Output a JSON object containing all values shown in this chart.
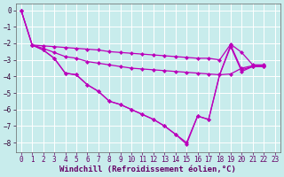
{
  "background_color": "#c8ecec",
  "line_color": "#bb00bb",
  "grid_color": "#ffffff",
  "xlabel": "Windchill (Refroidissement éolien,°C)",
  "xlim": [
    -0.5,
    23.5
  ],
  "ylim": [
    -8.6,
    0.4
  ],
  "yticks": [
    0,
    -1,
    -2,
    -3,
    -4,
    -5,
    -6,
    -7,
    -8
  ],
  "xticks": [
    0,
    1,
    2,
    3,
    4,
    5,
    6,
    7,
    8,
    9,
    10,
    11,
    12,
    13,
    14,
    15,
    16,
    17,
    18,
    19,
    20,
    21,
    22,
    23
  ],
  "curve1_x": [
    0,
    1,
    2,
    3,
    4,
    5,
    6,
    7,
    8,
    9,
    10,
    11,
    12,
    13,
    14,
    15,
    16,
    17,
    18,
    19,
    20,
    21,
    22
  ],
  "curve1_y": [
    0,
    -2.1,
    -2.15,
    -2.2,
    -2.25,
    -2.3,
    -2.35,
    -2.4,
    -2.5,
    -2.55,
    -2.6,
    -2.65,
    -2.7,
    -2.75,
    -2.8,
    -2.85,
    -2.9,
    -2.9,
    -3.0,
    -2.05,
    -2.55,
    -3.3,
    -3.3
  ],
  "curve2_x": [
    0,
    1,
    2,
    3,
    4,
    5,
    6,
    7,
    8,
    9,
    10,
    11,
    12,
    13,
    14,
    15,
    16,
    17,
    18,
    19,
    20,
    21,
    22
  ],
  "curve2_y": [
    0,
    -2.1,
    -2.3,
    -2.55,
    -2.8,
    -2.9,
    -3.1,
    -3.2,
    -3.3,
    -3.4,
    -3.5,
    -3.55,
    -3.6,
    -3.65,
    -3.7,
    -3.75,
    -3.8,
    -3.85,
    -3.9,
    -3.85,
    -3.5,
    -3.35,
    -3.35
  ],
  "curve3_x": [
    0,
    1,
    2,
    3,
    4,
    5,
    6,
    7,
    8,
    9,
    10,
    11,
    12,
    13,
    14,
    15,
    16,
    17,
    18,
    19,
    20,
    21,
    22
  ],
  "curve3_y": [
    0,
    -2.1,
    -2.4,
    -2.9,
    -3.8,
    -3.9,
    -4.5,
    -4.9,
    -5.5,
    -5.7,
    -6.0,
    -6.3,
    -6.6,
    -7.0,
    -7.5,
    -8.0,
    -6.4,
    -6.6,
    -3.9,
    -2.1,
    -3.6,
    -3.4,
    -3.4
  ],
  "curve4_x": [
    1,
    2,
    3,
    4,
    5,
    6,
    7,
    8,
    9,
    10,
    11,
    12,
    13,
    14,
    15,
    16,
    17,
    18,
    19,
    20,
    21,
    22
  ],
  "curve4_y": [
    -2.1,
    -2.4,
    -2.9,
    -3.8,
    -3.9,
    -4.5,
    -4.9,
    -5.5,
    -5.7,
    -6.0,
    -6.3,
    -6.6,
    -7.0,
    -7.5,
    -8.1,
    -6.4,
    -6.6,
    -3.9,
    -2.2,
    -3.7,
    -3.4,
    -3.4
  ],
  "marker": "D",
  "markersize": 2.0,
  "linewidth": 0.9,
  "xlabel_fontsize": 6.5,
  "tick_fontsize": 5.5
}
